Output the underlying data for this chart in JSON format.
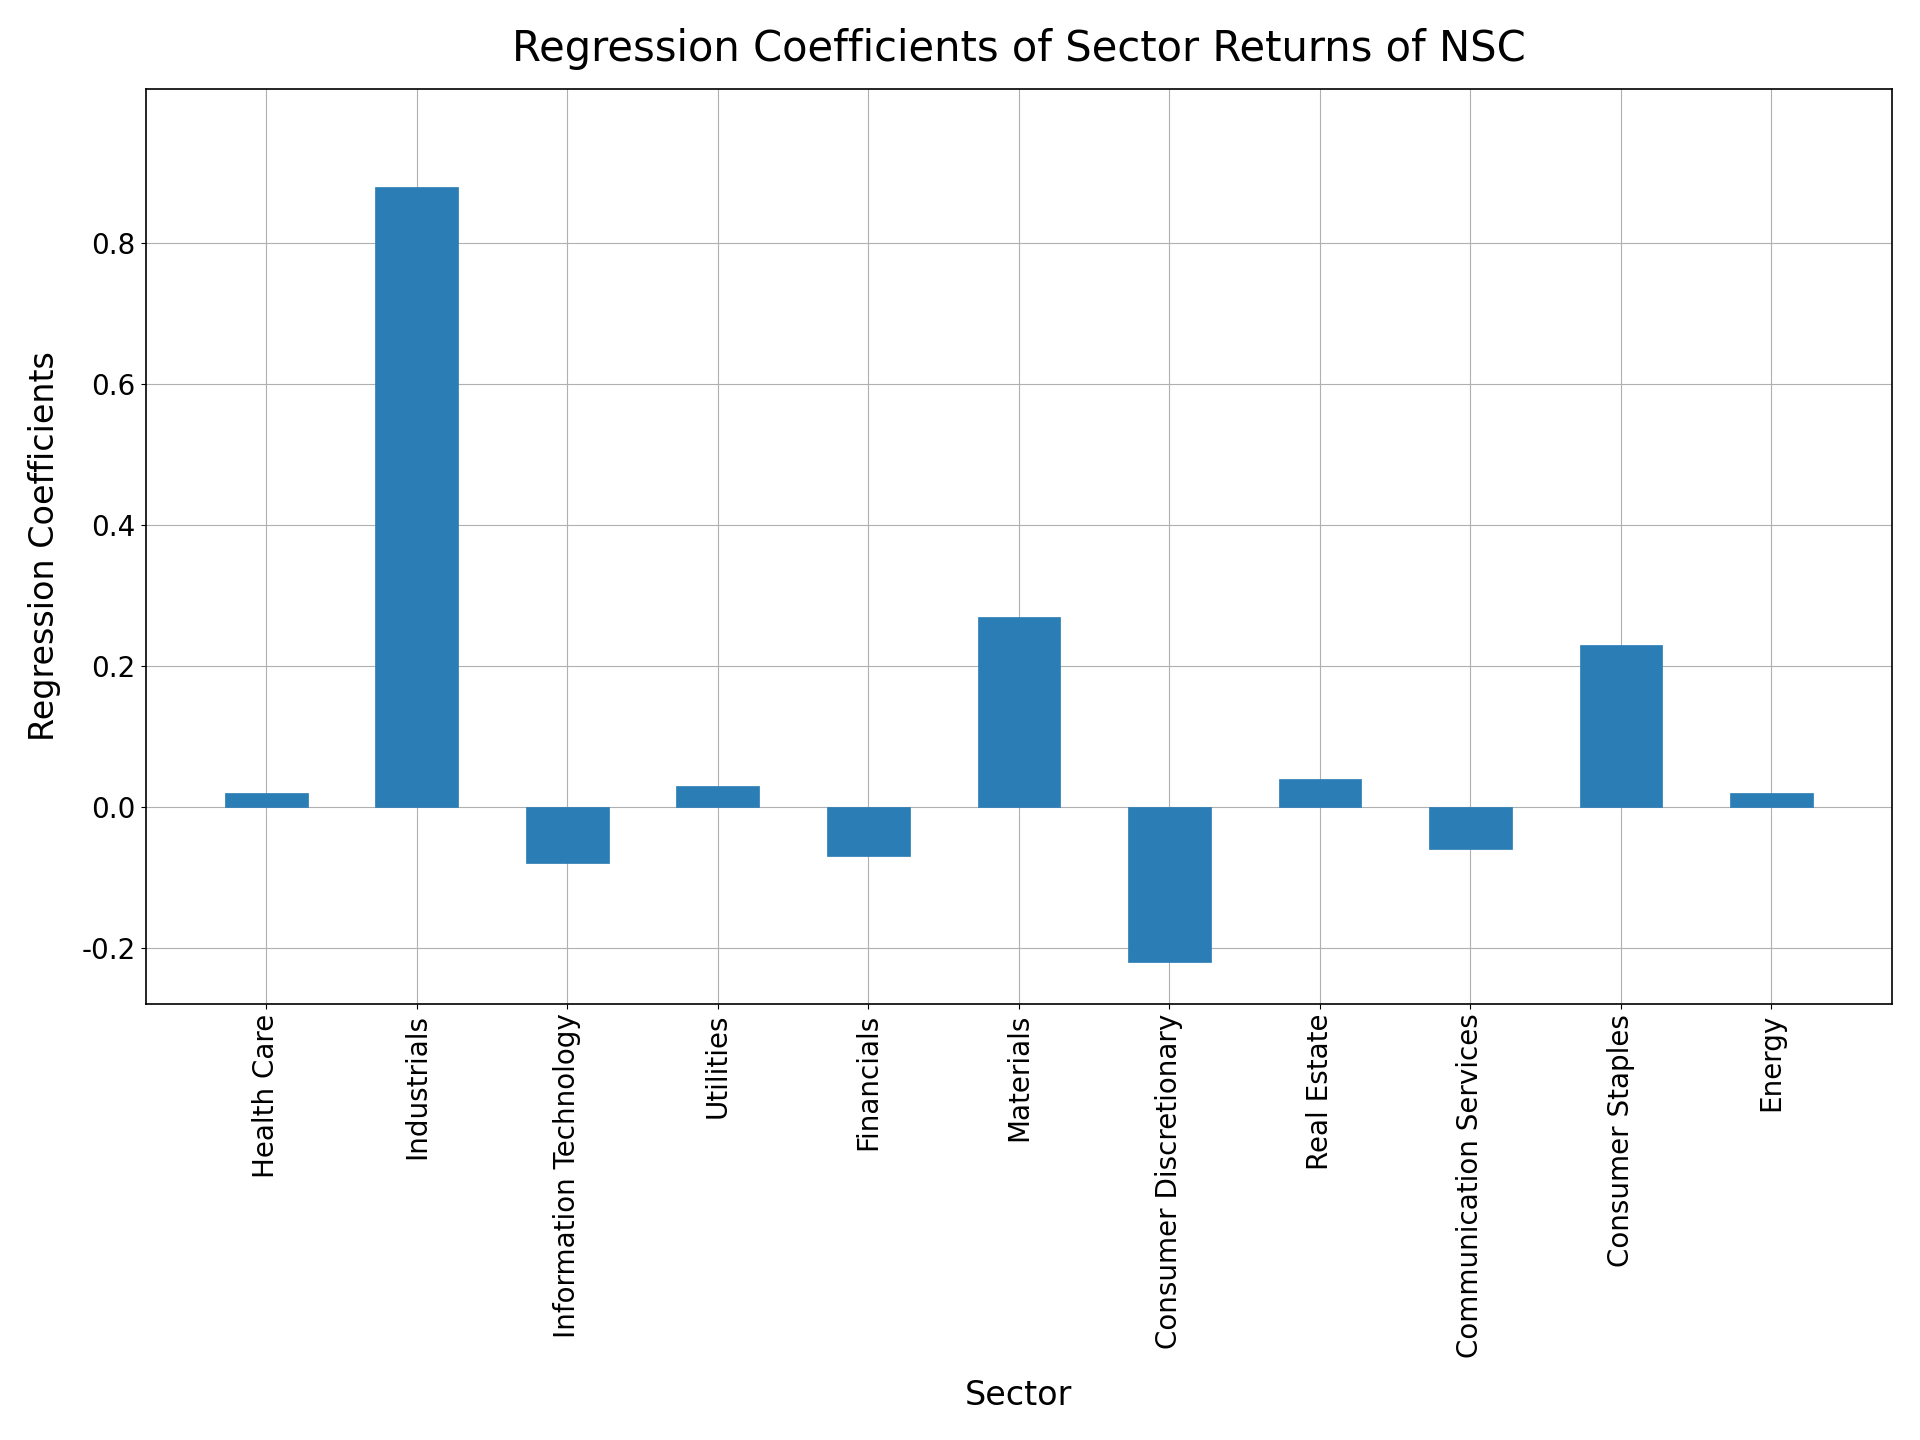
{
  "categories": [
    "Health Care",
    "Industrials",
    "Information Technology",
    "Utilities",
    "Financials",
    "Materials",
    "Consumer Discretionary",
    "Real Estate",
    "Communication Services",
    "Consumer Staples",
    "Energy"
  ],
  "values": [
    0.02,
    0.88,
    -0.08,
    0.03,
    -0.07,
    0.27,
    -0.22,
    0.04,
    -0.06,
    0.23,
    0.02
  ],
  "bar_color": "#2a7db5",
  "bar_edgecolor": "#2a7db5",
  "title": "Regression Coefficients of Sector Returns of NSC",
  "xlabel": "Sector",
  "ylabel": "Regression Coefficients",
  "title_fontsize": 30,
  "label_fontsize": 24,
  "tick_fontsize": 20,
  "ylim": [
    -0.28,
    1.02
  ],
  "yticks": [
    -0.2,
    0.0,
    0.2,
    0.4,
    0.6,
    0.8
  ],
  "grid_color": "#b0b0b0",
  "background_color": "#ffffff",
  "bar_width": 0.55
}
